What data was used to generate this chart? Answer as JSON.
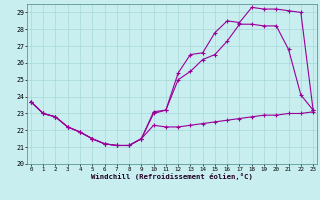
{
  "xlabel": "Windchill (Refroidissement éolien,°C)",
  "bg_color": "#c8eef0",
  "line_color": "#990099",
  "grid_color": "#a8d8d8",
  "curve1_x": [
    0,
    1,
    2,
    3,
    4,
    5,
    6,
    7,
    8,
    9,
    10,
    11,
    12,
    13,
    14,
    15,
    16,
    17,
    18,
    19,
    20,
    21,
    22,
    23
  ],
  "curve1_y": [
    23.7,
    23.0,
    22.8,
    22.2,
    21.9,
    21.5,
    21.2,
    21.1,
    21.1,
    21.5,
    22.3,
    22.2,
    22.2,
    22.3,
    22.4,
    22.5,
    22.6,
    22.7,
    22.8,
    22.9,
    22.9,
    23.0,
    23.0,
    23.1
  ],
  "curve2_x": [
    0,
    1,
    2,
    3,
    4,
    5,
    6,
    7,
    8,
    9,
    10,
    11,
    12,
    13,
    14,
    15,
    16,
    17,
    18,
    19,
    20,
    21,
    22,
    23
  ],
  "curve2_y": [
    23.7,
    23.0,
    22.8,
    22.2,
    21.9,
    21.5,
    21.2,
    21.1,
    21.1,
    21.5,
    23.0,
    23.2,
    25.0,
    25.5,
    26.2,
    26.5,
    27.3,
    28.3,
    28.3,
    28.2,
    28.2,
    26.8,
    24.1,
    23.2
  ],
  "curve3_x": [
    0,
    1,
    2,
    3,
    4,
    5,
    6,
    7,
    8,
    9,
    10,
    11,
    12,
    13,
    14,
    15,
    16,
    17,
    18,
    19,
    20,
    21,
    22,
    23
  ],
  "curve3_y": [
    23.7,
    23.0,
    22.8,
    22.2,
    21.9,
    21.5,
    21.2,
    21.1,
    21.1,
    21.5,
    23.1,
    23.2,
    25.4,
    26.5,
    26.6,
    27.8,
    28.5,
    28.4,
    29.3,
    29.2,
    29.2,
    29.1,
    29.0,
    23.2
  ],
  "xlim": [
    0,
    23
  ],
  "ylim": [
    20,
    29.5
  ],
  "yticks": [
    20,
    21,
    22,
    23,
    24,
    25,
    26,
    27,
    28,
    29
  ],
  "xticks": [
    0,
    1,
    2,
    3,
    4,
    5,
    6,
    7,
    8,
    9,
    10,
    11,
    12,
    13,
    14,
    15,
    16,
    17,
    18,
    19,
    20,
    21,
    22,
    23
  ]
}
